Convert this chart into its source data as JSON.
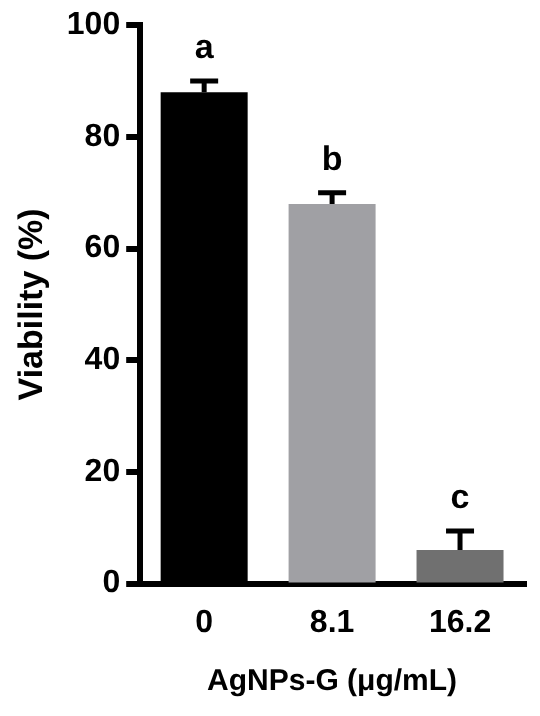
{
  "chart_data": {
    "type": "bar",
    "xlabel": "AgNPs-G (μg/mL)",
    "ylabel": "Viability (%)",
    "categories": [
      "0",
      "8.1",
      "16.2"
    ],
    "values": [
      88,
      68,
      6
    ],
    "colors": [
      "#000000",
      "#a0a0a4",
      "#707070"
    ],
    "errors": [
      [
        88,
        90
      ],
      [
        68,
        70
      ],
      [
        6,
        9.4
      ]
    ],
    "ylim": [
      0,
      100
    ],
    "yticks": [
      0,
      20,
      40,
      60,
      80,
      100
    ],
    "grid": false,
    "legend": false,
    "annotations": [
      "a",
      "b",
      "c"
    ]
  }
}
